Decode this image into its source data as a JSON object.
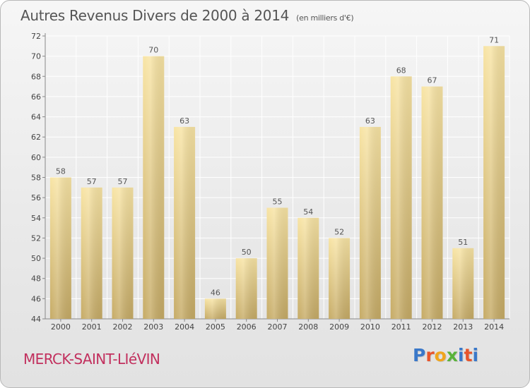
{
  "title": "Autres Revenus Divers de 2000 à 2014",
  "subtitle": "(en milliers d'€)",
  "commune": "MERCK-SAINT-LIéVIN",
  "logo": {
    "text": "Proxiti",
    "letter_colors": [
      "#3a78c9",
      "#e8552b",
      "#f0a51d",
      "#5ab33a",
      "#3a78c9",
      "#e8552b",
      "#3a78c9"
    ]
  },
  "colors": {
    "bar_light": "#f8e4a4",
    "bar_dark": "#c6ab66",
    "title": "#555555",
    "commune": "#c2305e",
    "grid": "#ffffff"
  },
  "chart_data": {
    "type": "bar",
    "categories": [
      "2000",
      "2001",
      "2002",
      "2003",
      "2004",
      "2005",
      "2006",
      "2007",
      "2008",
      "2009",
      "2010",
      "2011",
      "2012",
      "2013",
      "2014"
    ],
    "values": [
      58,
      57,
      57,
      70,
      63,
      46,
      50,
      55,
      54,
      52,
      63,
      68,
      67,
      51,
      71
    ],
    "ylim": [
      44,
      72
    ],
    "yticks": [
      44,
      46,
      48,
      50,
      52,
      54,
      56,
      58,
      60,
      62,
      64,
      66,
      68,
      70,
      72
    ],
    "grid": true,
    "data_labels": true
  }
}
